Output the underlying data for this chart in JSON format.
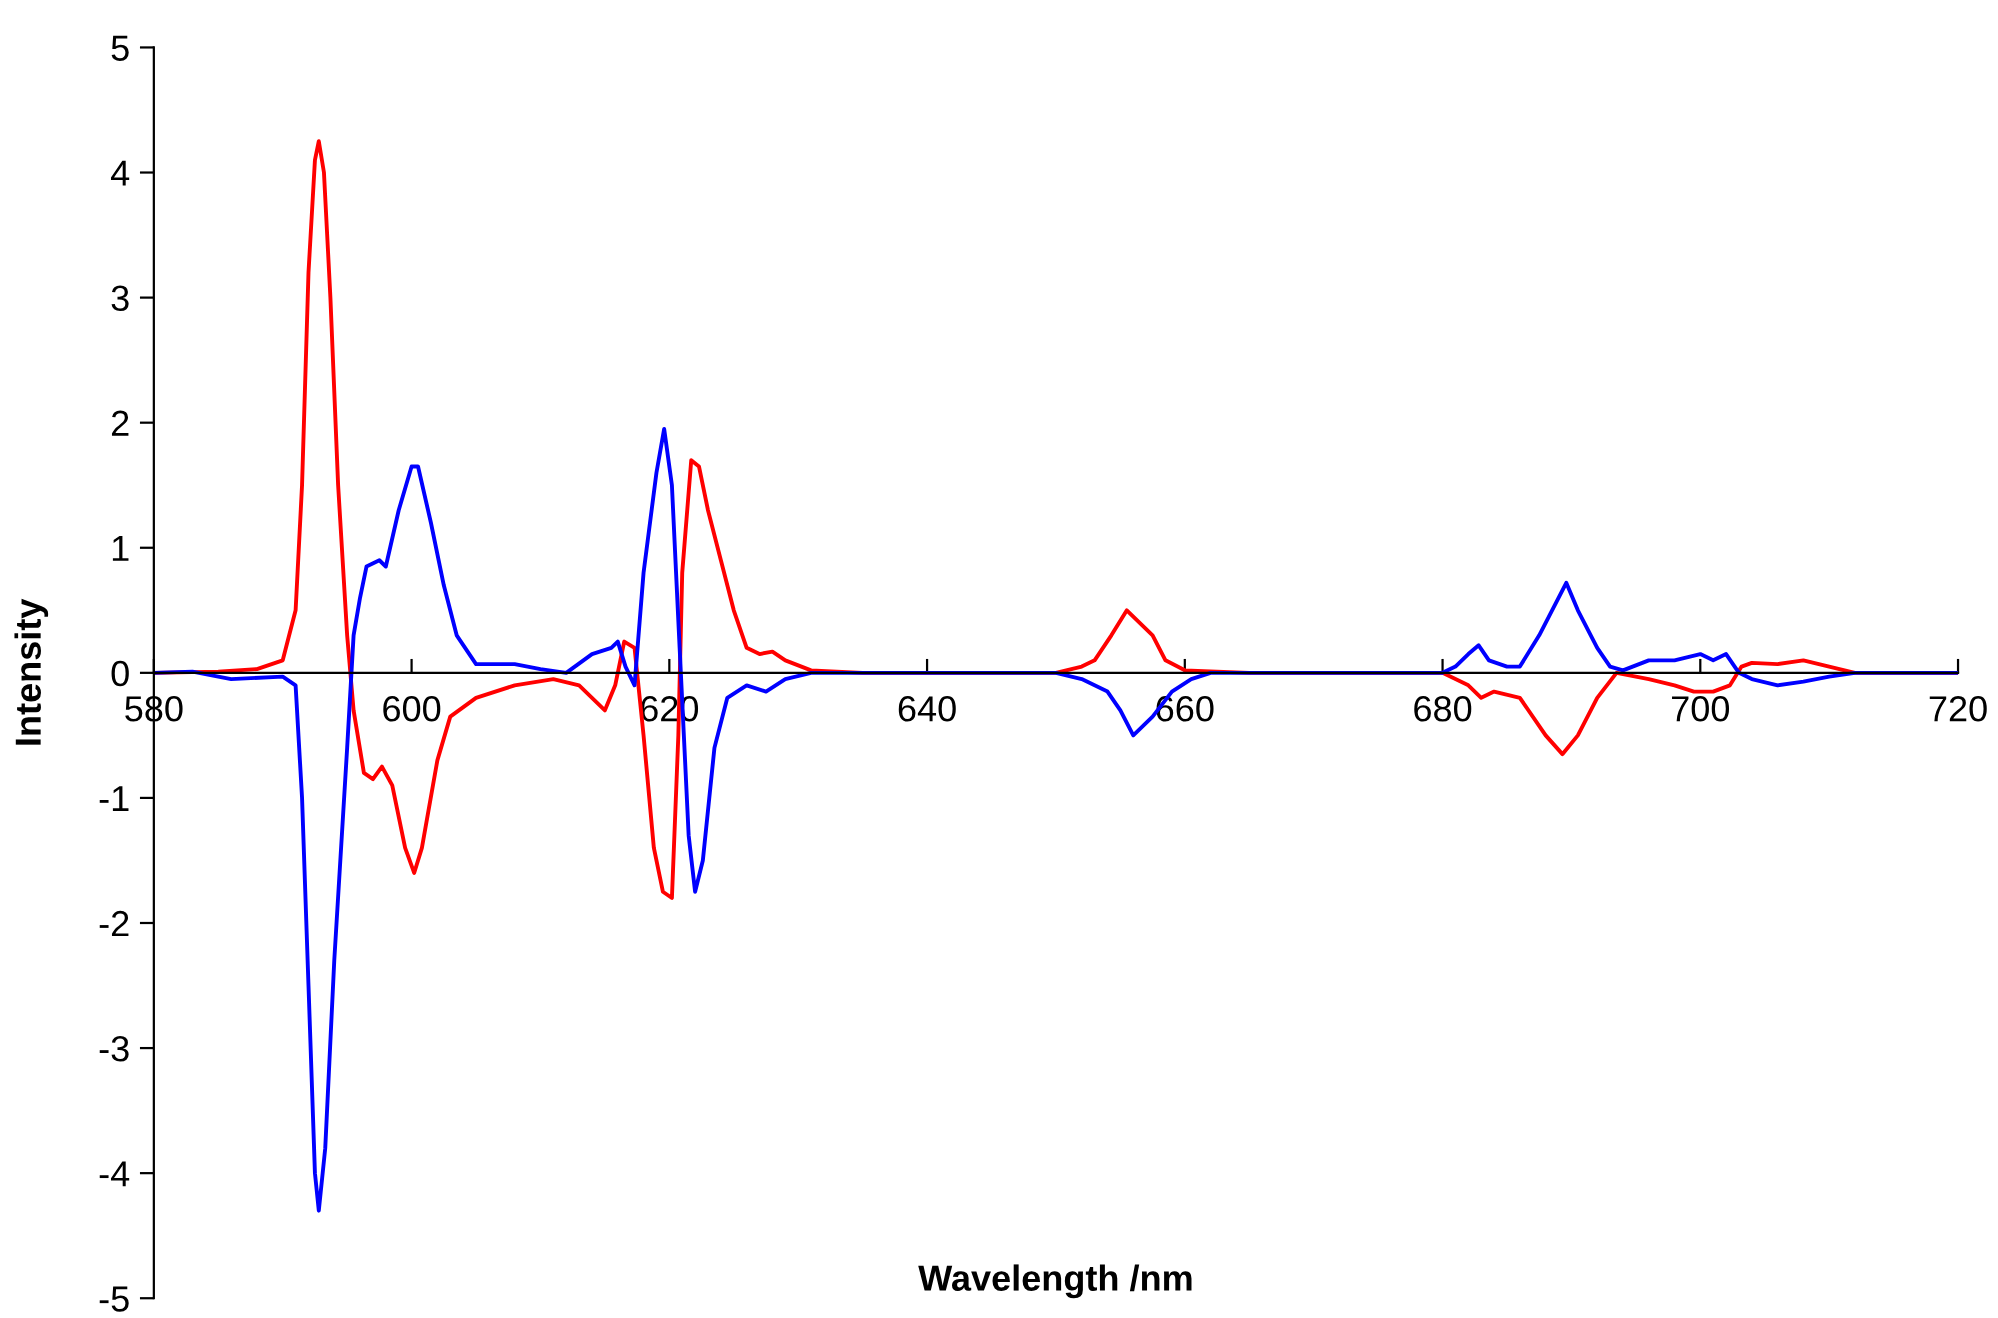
{
  "chart_data": {
    "type": "line",
    "xlabel": "Wavelength /nm",
    "ylabel": "Intensity",
    "xlim": [
      580,
      720
    ],
    "ylim": [
      -5,
      5
    ],
    "xticks": [
      580,
      600,
      620,
      640,
      660,
      680,
      700,
      720
    ],
    "yticks": [
      -5,
      -4,
      -3,
      -2,
      -1,
      0,
      1,
      2,
      3,
      4,
      5
    ],
    "grid": false,
    "legend": false,
    "marker": "none",
    "line_style": "solid",
    "series": [
      {
        "color": "#ff0000",
        "x": [
          580,
          585,
          588,
          590,
          591,
          591.5,
          592,
          592.5,
          592.8,
          593.2,
          593.7,
          594.3,
          595,
          595.5,
          596.3,
          597,
          597.7,
          598.5,
          599.5,
          600.2,
          600.8,
          602,
          603,
          605,
          608,
          611,
          613,
          614,
          615,
          615.8,
          616.5,
          617.3,
          618,
          618.8,
          619.5,
          620.2,
          620.7,
          621,
          621.7,
          622.3,
          623,
          624,
          625,
          626,
          627,
          628,
          629,
          631,
          635,
          650,
          652,
          653,
          654.3,
          655.5,
          656.5,
          657.5,
          658.5,
          660,
          665,
          680,
          682,
          683,
          684,
          686,
          688,
          689.3,
          690.5,
          692,
          693.5,
          696,
          698,
          699.5,
          701,
          702.3,
          703.2,
          704,
          706,
          708,
          710,
          712,
          720
        ],
        "values": [
          0,
          0.01,
          0.03,
          0.1,
          0.5,
          1.5,
          3.2,
          4.1,
          4.25,
          4.0,
          3.0,
          1.5,
          0.3,
          -0.3,
          -0.8,
          -0.85,
          -0.75,
          -0.9,
          -1.4,
          -1.6,
          -1.4,
          -0.7,
          -0.35,
          -0.2,
          -0.1,
          -0.05,
          -0.1,
          -0.2,
          -0.3,
          -0.1,
          0.25,
          0.2,
          -0.5,
          -1.4,
          -1.75,
          -1.8,
          -0.5,
          0.8,
          1.7,
          1.65,
          1.3,
          0.9,
          0.5,
          0.2,
          0.15,
          0.17,
          0.1,
          0.02,
          0,
          0,
          0.05,
          0.1,
          0.3,
          0.5,
          0.4,
          0.3,
          0.1,
          0.02,
          0,
          0,
          -0.1,
          -0.2,
          -0.15,
          -0.2,
          -0.5,
          -0.65,
          -0.5,
          -0.2,
          0,
          -0.05,
          -0.1,
          -0.15,
          -0.15,
          -0.1,
          0.05,
          0.08,
          0.07,
          0.1,
          0.05,
          0,
          0
        ]
      },
      {
        "color": "#0000ff",
        "x": [
          580,
          583,
          586,
          590,
          591,
          591.5,
          592,
          592.5,
          592.8,
          593.3,
          594,
          595,
          595.5,
          596,
          596.5,
          597.5,
          598,
          599,
          600,
          600.5,
          601.5,
          602.5,
          603.5,
          605,
          608,
          610,
          612,
          614,
          615.5,
          616,
          616.6,
          617.3,
          618,
          619,
          619.6,
          620.2,
          620.8,
          621.5,
          622,
          622.6,
          623.5,
          624.5,
          626,
          627.5,
          629,
          631,
          650,
          652,
          654,
          655,
          656,
          657.5,
          659,
          660.5,
          662,
          680,
          681,
          682,
          682.8,
          683.6,
          685,
          686,
          687.5,
          689,
          689.6,
          690.5,
          692,
          693,
          694,
          696,
          698,
          700,
          701,
          702,
          703,
          704,
          706,
          708,
          710,
          712,
          720
        ],
        "values": [
          0,
          0.01,
          -0.05,
          -0.03,
          -0.1,
          -1,
          -2.5,
          -4,
          -4.3,
          -3.8,
          -2.3,
          -0.6,
          0.3,
          0.6,
          0.85,
          0.9,
          0.85,
          1.3,
          1.65,
          1.65,
          1.2,
          0.7,
          0.3,
          0.07,
          0.07,
          0.03,
          0,
          0.15,
          0.2,
          0.25,
          0.05,
          -0.1,
          0.8,
          1.6,
          1.95,
          1.5,
          0.2,
          -1.3,
          -1.75,
          -1.5,
          -0.6,
          -0.2,
          -0.1,
          -0.15,
          -0.05,
          0,
          0,
          -0.05,
          -0.15,
          -0.3,
          -0.5,
          -0.35,
          -0.15,
          -0.05,
          0,
          0,
          0.05,
          0.15,
          0.22,
          0.1,
          0.05,
          0.05,
          0.3,
          0.6,
          0.72,
          0.5,
          0.2,
          0.05,
          0.02,
          0.1,
          0.1,
          0.15,
          0.1,
          0.15,
          0,
          -0.05,
          -0.1,
          -0.07,
          -0.03,
          0,
          0
        ]
      }
    ]
  }
}
